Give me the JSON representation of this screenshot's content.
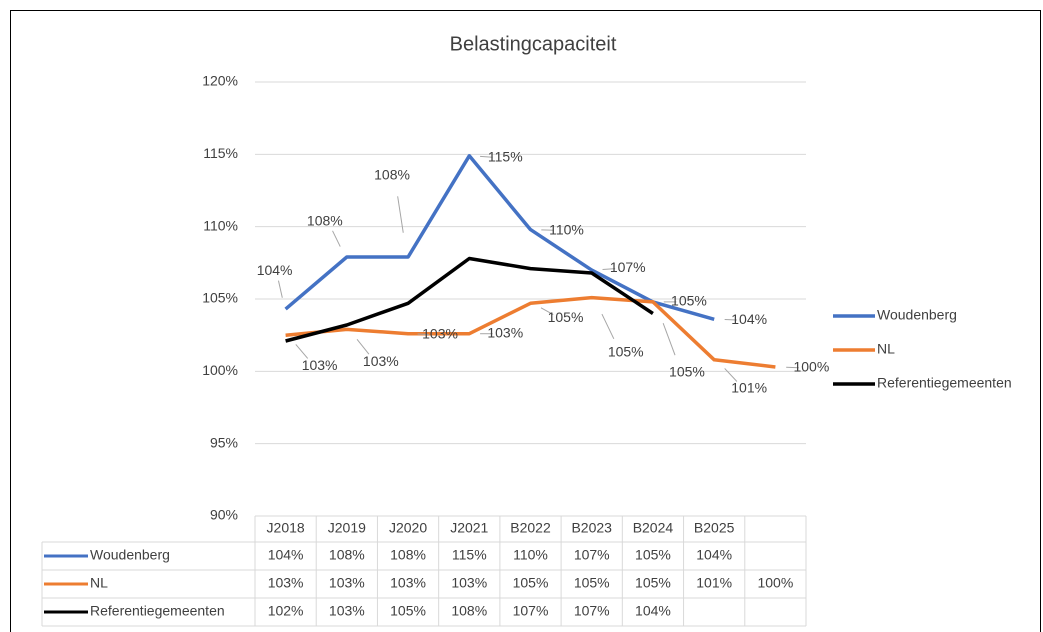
{
  "chart_data": {
    "type": "line",
    "title": "Belastingcapaciteit",
    "categories": [
      "J2018",
      "J2019",
      "J2020",
      "J2021",
      "B2022",
      "B2023",
      "B2024",
      "B2025",
      null
    ],
    "series": [
      {
        "name": "Woudenberg",
        "color": "#4472c4",
        "values": [
          104.3,
          107.9,
          107.9,
          114.9,
          109.8,
          107.0,
          104.8,
          103.6,
          null
        ],
        "value_labels": [
          "104%",
          "108%",
          "108%",
          "115%",
          "110%",
          "107%",
          "105%",
          "104%",
          null
        ]
      },
      {
        "name": "NL",
        "color": "#ed7d31",
        "values": [
          102.5,
          102.9,
          102.6,
          102.6,
          104.7,
          105.1,
          104.8,
          100.8,
          100.3
        ],
        "value_labels": [
          "103%",
          "103%",
          "103%",
          "103%",
          "105%",
          "105%",
          "105%",
          "101%",
          "100%"
        ]
      },
      {
        "name": "Referentiegemeenten",
        "color": "#000000",
        "values": [
          102.1,
          103.2,
          104.7,
          107.8,
          107.1,
          106.8,
          104.0,
          null,
          null
        ],
        "value_labels": [
          "102%",
          "103%",
          "105%",
          "108%",
          "107%",
          "107%",
          "104%",
          null,
          null
        ]
      }
    ],
    "ylim": [
      90,
      120
    ],
    "yticks": [
      {
        "value": 90,
        "label": "90%"
      },
      {
        "value": 95,
        "label": "95%"
      },
      {
        "value": 100,
        "label": "100%"
      },
      {
        "value": 105,
        "label": "105%"
      },
      {
        "value": 110,
        "label": "110%"
      },
      {
        "value": 115,
        "label": "115%"
      },
      {
        "value": 120,
        "label": "120%"
      }
    ],
    "grid": true,
    "legend": "right"
  }
}
